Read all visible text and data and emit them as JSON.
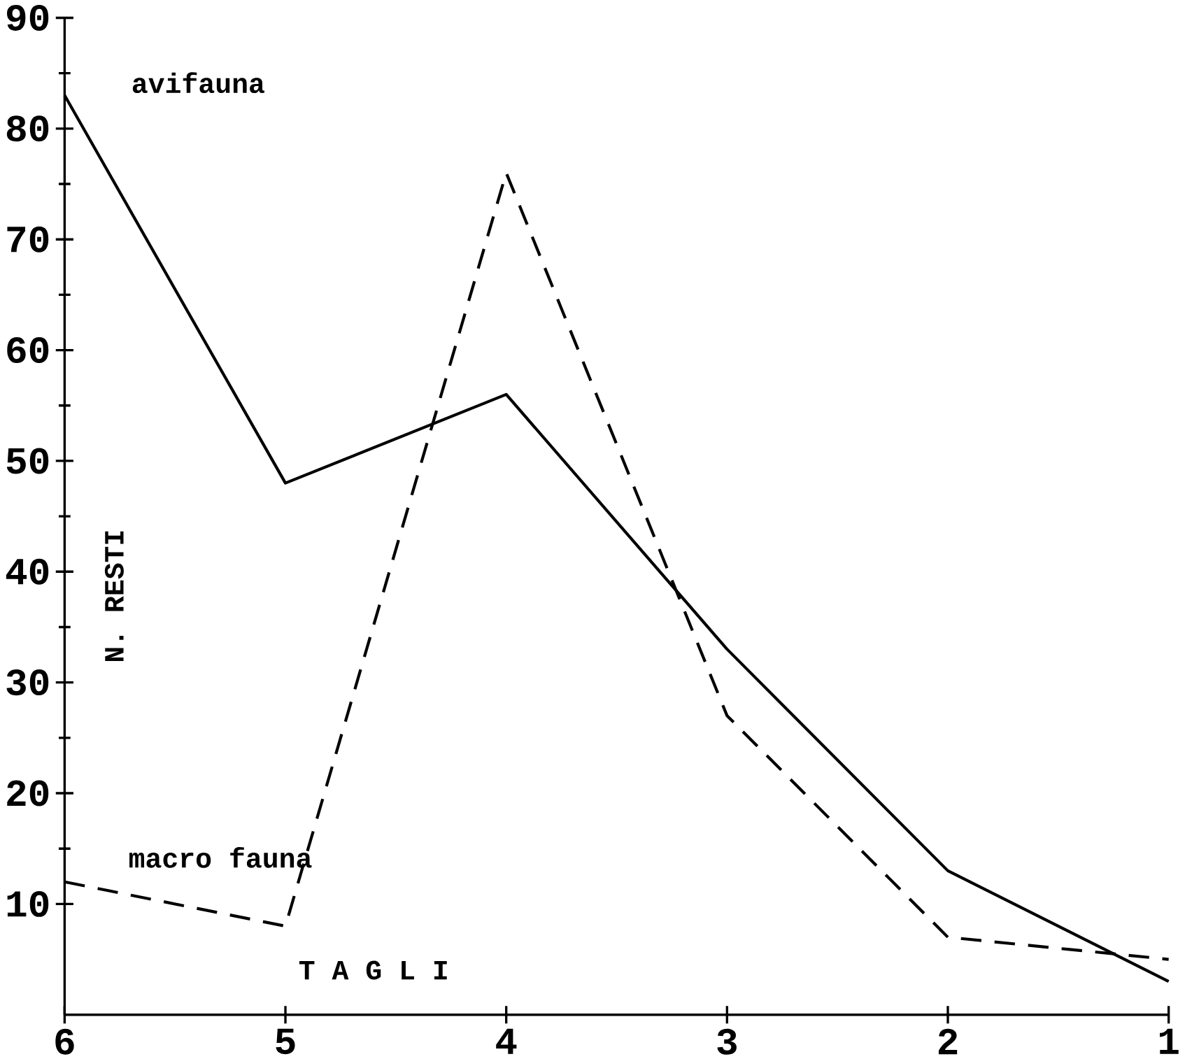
{
  "chart_data": {
    "type": "line",
    "xlabel": "T A G L I",
    "ylabel": "N. RESTI",
    "x": [
      6,
      5,
      4,
      3,
      2,
      1
    ],
    "xlim": [
      6,
      1
    ],
    "xticks": [
      6,
      5,
      4,
      3,
      2,
      1
    ],
    "ylim": [
      0,
      90
    ],
    "yticks": [
      10,
      20,
      30,
      40,
      50,
      60,
      70,
      80,
      90
    ],
    "series": [
      {
        "name": "avifauna",
        "color": "#000000",
        "line_style": "solid",
        "values": [
          83,
          48,
          56,
          33,
          13,
          3
        ]
      },
      {
        "name": "macro fauna",
        "color": "#000000",
        "line_style": "dashed",
        "values": [
          12,
          8,
          76,
          27,
          7,
          5
        ]
      }
    ],
    "grid": false,
    "legend": false,
    "marker": "none"
  }
}
